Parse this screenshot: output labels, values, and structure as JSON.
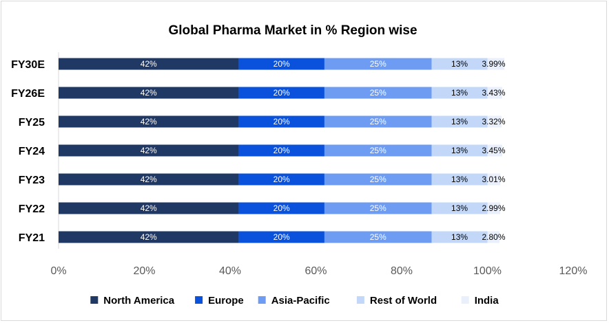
{
  "chart_data": {
    "type": "bar",
    "orientation": "horizontal",
    "stacked": true,
    "title": "Global Pharma Market in %  Region wise",
    "xlabel": "",
    "ylabel": "",
    "xlim": [
      0,
      120
    ],
    "x_ticks": [
      "0%",
      "20%",
      "40%",
      "60%",
      "80%",
      "100%",
      "120%"
    ],
    "categories": [
      "FY30E",
      "FY26E",
      "FY25",
      "FY24",
      "FY23",
      "FY22",
      "FY21"
    ],
    "grid": false,
    "legend_position": "bottom",
    "series": [
      {
        "name": "North America",
        "color": "#203864",
        "values": [
          42,
          42,
          42,
          42,
          42,
          42,
          42
        ],
        "labels": [
          "42%",
          "42%",
          "42%",
          "42%",
          "42%",
          "42%",
          "42%"
        ],
        "label_color": "#ffffff"
      },
      {
        "name": "Europe",
        "color": "#0a52db",
        "values": [
          20,
          20,
          20,
          20,
          20,
          20,
          20
        ],
        "labels": [
          "20%",
          "20%",
          "20%",
          "20%",
          "20%",
          "20%",
          "20%"
        ],
        "label_color": "#ffffff"
      },
      {
        "name": "Asia-Pacific",
        "color": "#6d9cf2",
        "values": [
          25,
          25,
          25,
          25,
          25,
          25,
          25
        ],
        "labels": [
          "25%",
          "25%",
          "25%",
          "25%",
          "25%",
          "25%",
          "25%"
        ],
        "label_color": "#ffffff"
      },
      {
        "name": "Rest of World",
        "color": "#c3d8f9",
        "values": [
          13,
          13,
          13,
          13,
          13,
          13,
          13
        ],
        "labels": [
          "13%",
          "13%",
          "13%",
          "13%",
          "13%",
          "13%",
          "13%"
        ],
        "label_color": "#000000"
      },
      {
        "name": "India",
        "color": "#e9effb",
        "values": [
          3.99,
          3.43,
          3.32,
          3.45,
          3.01,
          2.99,
          2.8
        ],
        "labels": [
          "3.99%",
          "3.43%",
          "3.32%",
          "3.45%",
          "3.01%",
          "2.99%",
          "2.80%"
        ],
        "label_color": "#000000"
      }
    ]
  }
}
